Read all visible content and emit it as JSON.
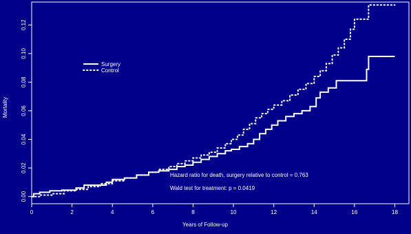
{
  "chart_data": {
    "type": "line",
    "xlabel": "Years of Follow-up",
    "ylabel": "Mortality",
    "xlim": [
      0,
      18.7
    ],
    "ylim": [
      -0.005,
      0.136
    ],
    "x_ticks": [
      0,
      2,
      4,
      6,
      8,
      10,
      12,
      14,
      16,
      18
    ],
    "x_tick_labels": [
      "0",
      "2",
      "4",
      "6",
      "8",
      "10",
      "12",
      "14",
      "16",
      "18"
    ],
    "y_ticks": [
      0.0,
      0.02,
      0.04,
      0.06,
      0.08,
      0.1,
      0.12
    ],
    "y_tick_labels": [
      "0.00",
      "0.02",
      "0.04",
      "0.06",
      "0.08",
      "0.10",
      "0.12"
    ],
    "grid": false,
    "legend_position": "upper-left",
    "background_color": "#00008b",
    "foreground_color": "#ffffff",
    "series": [
      {
        "name": "Surgery",
        "style": "solid",
        "step": true,
        "points": [
          [
            0,
            0.0
          ],
          [
            0.1,
            0.002
          ],
          [
            0.4,
            0.003
          ],
          [
            0.9,
            0.004
          ],
          [
            1.5,
            0.0045
          ],
          [
            2.2,
            0.006
          ],
          [
            2.6,
            0.008
          ],
          [
            3.2,
            0.008
          ],
          [
            3.7,
            0.01
          ],
          [
            4.0,
            0.012
          ],
          [
            4.6,
            0.013
          ],
          [
            5.2,
            0.015
          ],
          [
            5.8,
            0.017
          ],
          [
            6.3,
            0.018
          ],
          [
            6.8,
            0.019
          ],
          [
            7.2,
            0.021
          ],
          [
            7.6,
            0.022
          ],
          [
            8.0,
            0.024
          ],
          [
            8.4,
            0.026
          ],
          [
            8.8,
            0.028
          ],
          [
            9.2,
            0.03
          ],
          [
            9.6,
            0.032
          ],
          [
            9.9,
            0.033
          ],
          [
            10.3,
            0.035
          ],
          [
            10.7,
            0.037
          ],
          [
            11.0,
            0.04
          ],
          [
            11.3,
            0.044
          ],
          [
            11.6,
            0.047
          ],
          [
            11.9,
            0.05
          ],
          [
            12.2,
            0.053
          ],
          [
            12.6,
            0.056
          ],
          [
            13.0,
            0.058
          ],
          [
            13.4,
            0.06
          ],
          [
            13.8,
            0.063
          ],
          [
            14.1,
            0.069
          ],
          [
            14.3,
            0.073
          ],
          [
            14.7,
            0.076
          ],
          [
            15.1,
            0.081
          ],
          [
            16.1,
            0.081
          ],
          [
            16.5,
            0.081
          ],
          [
            16.6,
            0.089
          ],
          [
            16.7,
            0.098
          ],
          [
            18.0,
            0.098
          ]
        ]
      },
      {
        "name": "Control",
        "style": "dotted",
        "step": true,
        "points": [
          [
            0,
            0.0
          ],
          [
            0.4,
            0.001
          ],
          [
            1.0,
            0.002
          ],
          [
            1.6,
            0.004
          ],
          [
            2.2,
            0.005
          ],
          [
            2.8,
            0.007
          ],
          [
            3.4,
            0.009
          ],
          [
            4.0,
            0.011
          ],
          [
            4.6,
            0.013
          ],
          [
            5.2,
            0.015
          ],
          [
            5.8,
            0.017
          ],
          [
            6.3,
            0.019
          ],
          [
            6.8,
            0.021
          ],
          [
            7.2,
            0.023
          ],
          [
            7.6,
            0.025
          ],
          [
            8.0,
            0.027
          ],
          [
            8.4,
            0.029
          ],
          [
            8.8,
            0.031
          ],
          [
            9.2,
            0.034
          ],
          [
            9.6,
            0.037
          ],
          [
            9.9,
            0.04
          ],
          [
            10.2,
            0.043
          ],
          [
            10.5,
            0.047
          ],
          [
            10.8,
            0.051
          ],
          [
            11.1,
            0.055
          ],
          [
            11.4,
            0.058
          ],
          [
            11.7,
            0.061
          ],
          [
            12.0,
            0.064
          ],
          [
            12.4,
            0.067
          ],
          [
            12.8,
            0.071
          ],
          [
            13.2,
            0.075
          ],
          [
            13.6,
            0.079
          ],
          [
            14.0,
            0.084
          ],
          [
            14.3,
            0.088
          ],
          [
            14.6,
            0.093
          ],
          [
            14.9,
            0.099
          ],
          [
            15.2,
            0.104
          ],
          [
            15.5,
            0.11
          ],
          [
            15.8,
            0.117
          ],
          [
            16.0,
            0.124
          ],
          [
            16.5,
            0.124
          ],
          [
            16.7,
            0.134
          ],
          [
            18.0,
            0.134
          ]
        ]
      }
    ],
    "annotations": [
      "Hazard ratio for death, surgery relative to control = 0.763",
      "Wald test for treatment:  p = 0.0419"
    ]
  }
}
